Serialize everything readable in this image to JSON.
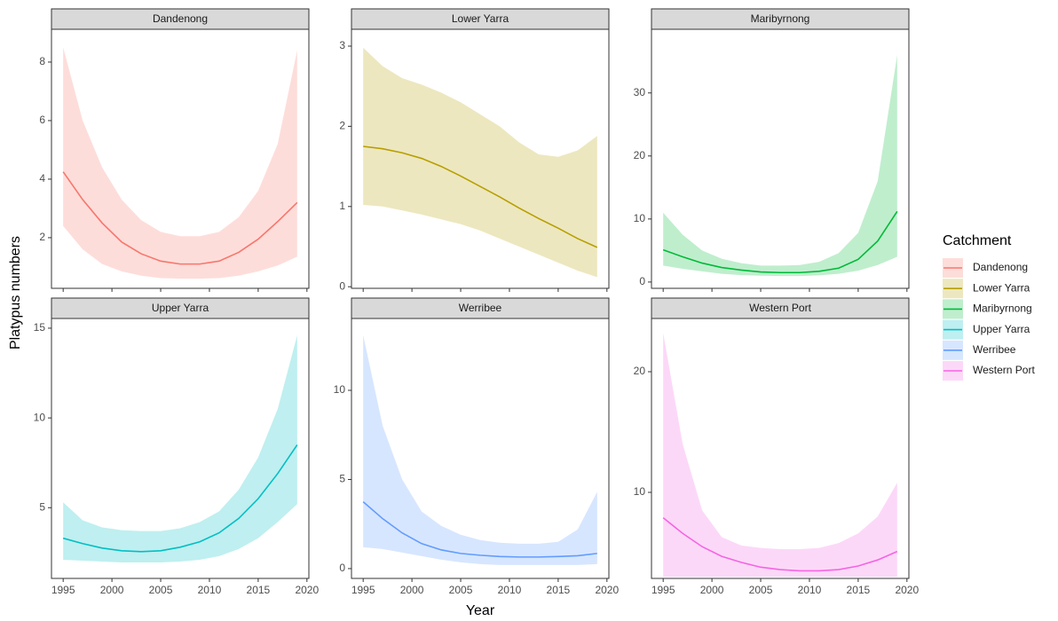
{
  "chart_data": [
    {
      "type": "line",
      "title": "Dandenong",
      "x": [
        1995,
        1997,
        1999,
        2001,
        2003,
        2005,
        2007,
        2009,
        2011,
        2013,
        2015,
        2017,
        2019
      ],
      "series": [
        {
          "name": "Dandenong",
          "color": "#F8766D",
          "values": [
            4.25,
            3.3,
            2.5,
            1.85,
            1.45,
            1.2,
            1.1,
            1.1,
            1.2,
            1.5,
            1.95,
            2.55,
            3.2
          ],
          "lower": [
            2.4,
            1.6,
            1.1,
            0.85,
            0.7,
            0.62,
            0.6,
            0.6,
            0.62,
            0.7,
            0.85,
            1.05,
            1.35
          ],
          "upper": [
            8.5,
            6.0,
            4.4,
            3.3,
            2.6,
            2.2,
            2.05,
            2.05,
            2.2,
            2.7,
            3.6,
            5.2,
            8.4
          ]
        }
      ],
      "xlim": [
        1993.8,
        2020.2
      ],
      "xticks": [
        1995,
        2000,
        2005,
        2010,
        2015,
        2020
      ],
      "ylim": [
        0.27,
        9.12
      ],
      "yticks": [
        2,
        4,
        6,
        8
      ]
    },
    {
      "type": "line",
      "title": "Lower Yarra",
      "x": [
        1995,
        1997,
        1999,
        2001,
        2003,
        2005,
        2007,
        2009,
        2011,
        2013,
        2015,
        2017,
        2019
      ],
      "series": [
        {
          "name": "Lower Yarra",
          "color": "#B79F00",
          "values": [
            1.75,
            1.72,
            1.67,
            1.6,
            1.5,
            1.38,
            1.25,
            1.12,
            0.98,
            0.85,
            0.73,
            0.6,
            0.49
          ],
          "lower": [
            1.02,
            1.0,
            0.95,
            0.9,
            0.84,
            0.78,
            0.7,
            0.6,
            0.5,
            0.4,
            0.3,
            0.2,
            0.12
          ],
          "upper": [
            2.98,
            2.75,
            2.6,
            2.52,
            2.42,
            2.3,
            2.15,
            2.0,
            1.8,
            1.65,
            1.62,
            1.7,
            1.88
          ]
        }
      ],
      "xlim": [
        1993.8,
        2020.2
      ],
      "xticks": [
        1995,
        2000,
        2005,
        2010,
        2015,
        2020
      ],
      "ylim": [
        -0.02,
        3.21
      ],
      "yticks": [
        0,
        1,
        2,
        3
      ]
    },
    {
      "type": "line",
      "title": "Maribyrnong",
      "x": [
        1995,
        1997,
        1999,
        2001,
        2003,
        2005,
        2007,
        2009,
        2011,
        2013,
        2015,
        2017,
        2019
      ],
      "series": [
        {
          "name": "Maribyrnong",
          "color": "#00BA38",
          "values": [
            5.1,
            4.0,
            3.0,
            2.3,
            1.9,
            1.6,
            1.5,
            1.5,
            1.7,
            2.2,
            3.6,
            6.5,
            11.2
          ],
          "lower": [
            2.6,
            2.1,
            1.7,
            1.3,
            1.1,
            1.0,
            0.95,
            0.95,
            1.05,
            1.3,
            1.8,
            2.7,
            4.0
          ],
          "upper": [
            11,
            7.5,
            5,
            3.7,
            3,
            2.6,
            2.6,
            2.7,
            3.2,
            4.6,
            7.8,
            16,
            36
          ]
        }
      ],
      "xlim": [
        1993.8,
        2020.2
      ],
      "xticks": [
        1995,
        2000,
        2005,
        2010,
        2015,
        2020
      ],
      "ylim": [
        -1.0,
        40.1
      ],
      "yticks": [
        0,
        10,
        20,
        30
      ]
    },
    {
      "type": "line",
      "title": "Upper Yarra",
      "x": [
        1995,
        1997,
        1999,
        2001,
        2003,
        2005,
        2007,
        2009,
        2011,
        2013,
        2015,
        2017,
        2019
      ],
      "series": [
        {
          "name": "Upper Yarra",
          "color": "#00BFC4",
          "values": [
            3.3,
            3.0,
            2.75,
            2.6,
            2.55,
            2.6,
            2.8,
            3.1,
            3.6,
            4.4,
            5.5,
            6.9,
            8.5
          ],
          "lower": [
            2.1,
            2.05,
            2.0,
            1.95,
            1.95,
            1.95,
            2.0,
            2.1,
            2.3,
            2.7,
            3.3,
            4.2,
            5.2
          ],
          "upper": [
            5.3,
            4.3,
            3.9,
            3.75,
            3.7,
            3.7,
            3.85,
            4.2,
            4.8,
            6.0,
            7.8,
            10.5,
            14.6
          ]
        }
      ],
      "xlim": [
        1993.8,
        2020.2
      ],
      "xticks": [
        1995,
        2000,
        2005,
        2010,
        2015,
        2020
      ],
      "ylim": [
        1.06,
        15.54
      ],
      "yticks": [
        5,
        10,
        15
      ]
    },
    {
      "type": "line",
      "title": "Werribee",
      "x": [
        1995,
        1997,
        1999,
        2001,
        2003,
        2005,
        2007,
        2009,
        2011,
        2013,
        2015,
        2017,
        2019
      ],
      "series": [
        {
          "name": "Werribee",
          "color": "#619CFF",
          "values": [
            3.75,
            2.8,
            2.0,
            1.4,
            1.05,
            0.85,
            0.75,
            0.68,
            0.65,
            0.65,
            0.68,
            0.72,
            0.85
          ],
          "lower": [
            1.2,
            1.1,
            0.9,
            0.7,
            0.5,
            0.35,
            0.25,
            0.2,
            0.2,
            0.2,
            0.2,
            0.2,
            0.25
          ],
          "upper": [
            13.1,
            8,
            5,
            3.2,
            2.4,
            1.9,
            1.6,
            1.45,
            1.4,
            1.4,
            1.5,
            2.2,
            4.3
          ]
        }
      ],
      "xlim": [
        1993.8,
        2020.2
      ],
      "xticks": [
        1995,
        2000,
        2005,
        2010,
        2015,
        2020
      ],
      "ylim": [
        -0.55,
        14.03
      ],
      "yticks": [
        0,
        5,
        10
      ]
    },
    {
      "type": "line",
      "title": "Western Port",
      "x": [
        1995,
        1997,
        1999,
        2001,
        2003,
        2005,
        2007,
        2009,
        2011,
        2013,
        2015,
        2017,
        2019
      ],
      "series": [
        {
          "name": "Western Port",
          "color": "#F564E3",
          "values": [
            7.9,
            6.6,
            5.5,
            4.7,
            4.2,
            3.8,
            3.6,
            3.5,
            3.5,
            3.6,
            3.9,
            4.4,
            5.1
          ],
          "lower": [
            3.0,
            3.0,
            3.0,
            3.0,
            3.0,
            3.0,
            3.0,
            3.0,
            3.0,
            3.0,
            3.0,
            3.0,
            3.0
          ],
          "upper": [
            23.2,
            14,
            8.5,
            6.3,
            5.6,
            5.4,
            5.3,
            5.3,
            5.4,
            5.8,
            6.6,
            8,
            10.8
          ]
        }
      ],
      "xlim": [
        1993.8,
        2020.2
      ],
      "xticks": [
        1995,
        2000,
        2005,
        2010,
        2015,
        2020
      ],
      "ylim": [
        2.87,
        24.41
      ],
      "yticks": [
        10,
        20
      ]
    }
  ],
  "x_label": "Year",
  "y_label": "Platypus numbers",
  "legend_title": "Catchment"
}
